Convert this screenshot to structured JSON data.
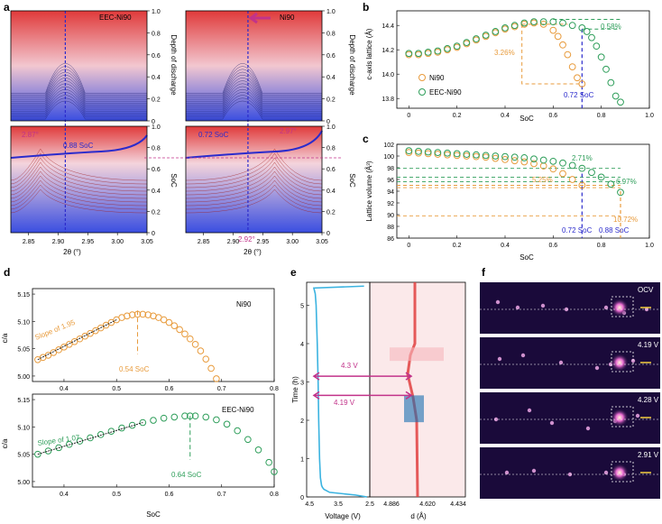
{
  "figure": {
    "panel_labels": [
      "a",
      "b",
      "c",
      "d",
      "e",
      "f"
    ]
  },
  "colors": {
    "ni90": "#e89b3c",
    "eec": "#2e9e5a",
    "blue": "#2b2bcc",
    "magenta": "#c2338a",
    "trace": "#3bb3e0",
    "red": "#e04040",
    "dark": "#1a0a3a"
  },
  "chart_data": [
    {
      "id": "a",
      "type": "line",
      "title": "XRD contour (002)-type peak evolution during charge/discharge",
      "subplots": [
        {
          "name": "EEC-Ni90",
          "xlim": [
            2.82,
            3.05
          ],
          "peak_charge": 2.87,
          "dashed_x": 2.912,
          "annotation_soc": "0.88 SoC",
          "shift_label": "2.87°"
        },
        {
          "name": "Ni90",
          "xlim": [
            2.82,
            3.05
          ],
          "peak_charge": 2.97,
          "dashed_x": 2.925,
          "annotation_soc": "0.72 SoC",
          "shift_label_top": "2.97°",
          "shift_label_bottom": "2.92°"
        }
      ],
      "xlabel": "2θ (°)",
      "xticks": [
        "2.85",
        "2.90",
        "2.95",
        "3.00",
        "3.05"
      ],
      "right_axis_top_label": "Depth of discharge",
      "right_axis_bottom_label": "SoC",
      "yticks_top": [
        "0",
        "0.2",
        "0.4",
        "0.6",
        "0.8",
        "1.0"
      ],
      "yticks_bottom": [
        "0",
        "0.2",
        "0.4",
        "0.6",
        "0.8",
        "1.0"
      ]
    },
    {
      "id": "b",
      "type": "scatter",
      "xlabel": "SoC",
      "ylabel": "c-axis lattice (Å)",
      "xlim": [
        -0.05,
        1.0
      ],
      "ylim": [
        13.72,
        14.52
      ],
      "xticks": [
        "0",
        "0.2",
        "0.4",
        "0.6",
        "0.8",
        "1.0"
      ],
      "yticks": [
        "13.8",
        "14.0",
        "14.2",
        "14.4"
      ],
      "series": [
        {
          "name": "Ni90",
          "color_key": "ni90",
          "x": [
            0.0,
            0.04,
            0.08,
            0.12,
            0.16,
            0.2,
            0.24,
            0.28,
            0.32,
            0.36,
            0.4,
            0.44,
            0.48,
            0.52,
            0.56,
            0.6,
            0.62,
            0.64,
            0.66,
            0.68,
            0.7,
            0.72
          ],
          "y": [
            14.16,
            14.16,
            14.17,
            14.18,
            14.2,
            14.22,
            14.25,
            14.28,
            14.31,
            14.34,
            14.37,
            14.39,
            14.41,
            14.42,
            14.41,
            14.36,
            14.31,
            14.24,
            14.16,
            14.06,
            13.97,
            13.92
          ]
        },
        {
          "name": "EEC-Ni90",
          "color_key": "eec",
          "x": [
            0.0,
            0.04,
            0.08,
            0.12,
            0.16,
            0.2,
            0.24,
            0.28,
            0.32,
            0.36,
            0.4,
            0.44,
            0.48,
            0.52,
            0.56,
            0.6,
            0.64,
            0.68,
            0.72,
            0.74,
            0.76,
            0.78,
            0.8,
            0.82,
            0.84,
            0.86,
            0.88
          ],
          "y": [
            14.17,
            14.17,
            14.18,
            14.19,
            14.21,
            14.23,
            14.26,
            14.29,
            14.32,
            14.35,
            14.38,
            14.4,
            14.42,
            14.43,
            14.43,
            14.43,
            14.42,
            14.4,
            14.38,
            14.35,
            14.3,
            14.23,
            14.14,
            14.04,
            13.93,
            13.82,
            13.77
          ]
        }
      ],
      "annotations": {
        "ni90_drop": "3.26%",
        "eec_drop": "0.58%",
        "soc_line": "0.72 SoC"
      }
    },
    {
      "id": "c",
      "type": "scatter",
      "xlabel": "SoC",
      "ylabel": "Lattice volume (Å³)",
      "xlim": [
        -0.05,
        1.0
      ],
      "ylim": [
        86,
        102
      ],
      "xticks": [
        "0",
        "0.2",
        "0.4",
        "0.6",
        "0.8",
        "1.0"
      ],
      "yticks": [
        "86",
        "88",
        "90",
        "92",
        "94",
        "96",
        "98",
        "100",
        "102"
      ],
      "series": [
        {
          "name": "Ni90",
          "color_key": "ni90",
          "x": [
            0.0,
            0.04,
            0.08,
            0.12,
            0.16,
            0.2,
            0.24,
            0.28,
            0.32,
            0.36,
            0.4,
            0.44,
            0.48,
            0.52,
            0.56,
            0.6,
            0.64,
            0.68,
            0.72
          ],
          "y": [
            100.6,
            100.5,
            100.4,
            100.3,
            100.2,
            100.1,
            100.0,
            99.9,
            99.8,
            99.6,
            99.4,
            99.2,
            99.0,
            98.7,
            98.3,
            97.8,
            97.0,
            96.0,
            95.0
          ]
        },
        {
          "name": "EEC-Ni90",
          "color_key": "eec",
          "x": [
            0.0,
            0.04,
            0.08,
            0.12,
            0.16,
            0.2,
            0.24,
            0.28,
            0.32,
            0.36,
            0.4,
            0.44,
            0.48,
            0.52,
            0.56,
            0.6,
            0.64,
            0.68,
            0.72,
            0.76,
            0.8,
            0.84,
            0.88
          ],
          "y": [
            100.9,
            100.8,
            100.7,
            100.6,
            100.5,
            100.4,
            100.3,
            100.2,
            100.1,
            100.0,
            99.9,
            99.8,
            99.7,
            99.5,
            99.3,
            99.1,
            98.8,
            98.4,
            97.9,
            97.2,
            96.4,
            95.2,
            93.8
          ]
        }
      ],
      "annotations": {
        "a1": "2.71%",
        "a2": "6.97%",
        "a3": "5.25%",
        "a4": "10.72%",
        "soc1": "0.72 SoC",
        "soc2": "0.88 SoC"
      }
    },
    {
      "id": "d",
      "type": "scatter",
      "xlabel": "SoC",
      "ylabel": "c/a",
      "xlim": [
        0.34,
        0.8
      ],
      "ylim": [
        4.99,
        5.16
      ],
      "xticks": [
        "0.4",
        "0.5",
        "0.6",
        "0.7",
        "0.8"
      ],
      "yticks": [
        "5.00",
        "5.05",
        "5.10",
        "5.15"
      ],
      "subplots": [
        {
          "name": "Ni90",
          "color_key": "ni90",
          "slope_label": "Slope of 1.95",
          "peak_label": "0.54 SoC",
          "peak_x": 0.54,
          "x": [
            0.35,
            0.36,
            0.37,
            0.38,
            0.39,
            0.4,
            0.41,
            0.42,
            0.43,
            0.44,
            0.45,
            0.46,
            0.47,
            0.48,
            0.49,
            0.5,
            0.51,
            0.52,
            0.53,
            0.54,
            0.55,
            0.56,
            0.57,
            0.58,
            0.59,
            0.6,
            0.61,
            0.62,
            0.63,
            0.64,
            0.65,
            0.66,
            0.67,
            0.68,
            0.69
          ],
          "y": [
            5.03,
            5.034,
            5.038,
            5.043,
            5.048,
            5.053,
            5.058,
            5.063,
            5.068,
            5.073,
            5.078,
            5.083,
            5.088,
            5.093,
            5.098,
            5.103,
            5.107,
            5.11,
            5.112,
            5.113,
            5.113,
            5.112,
            5.11,
            5.107,
            5.103,
            5.098,
            5.092,
            5.085,
            5.077,
            5.068,
            5.058,
            5.046,
            5.031,
            5.014,
            4.995
          ]
        },
        {
          "name": "EEC-Ni90",
          "color_key": "eec",
          "slope_label": "Slope of 1.07",
          "peak_label": "0.64 SoC",
          "peak_x": 0.64,
          "x": [
            0.35,
            0.37,
            0.39,
            0.41,
            0.43,
            0.45,
            0.47,
            0.49,
            0.51,
            0.53,
            0.55,
            0.57,
            0.59,
            0.61,
            0.63,
            0.64,
            0.65,
            0.67,
            0.69,
            0.71,
            0.73,
            0.75,
            0.77,
            0.79,
            0.8
          ],
          "y": [
            5.05,
            5.056,
            5.062,
            5.068,
            5.074,
            5.08,
            5.086,
            5.092,
            5.098,
            5.103,
            5.108,
            5.112,
            5.116,
            5.118,
            5.12,
            5.12,
            5.12,
            5.118,
            5.113,
            5.105,
            5.093,
            5.077,
            5.058,
            5.035,
            5.018
          ]
        }
      ]
    },
    {
      "id": "e",
      "type": "line",
      "xlabel_left": "Voltage (V)",
      "xlabel_right": "d (Å)",
      "ylabel": "Time (h)",
      "ylim": [
        0,
        5.6
      ],
      "yticks": [
        "0",
        "1",
        "2",
        "3",
        "4",
        "5"
      ],
      "vticks": [
        "4.5",
        "3.5",
        "2.5"
      ],
      "dticks": [
        "4.886",
        "4.620",
        "4.434"
      ],
      "voltage_trace": {
        "t": [
          0,
          0.05,
          0.12,
          0.2,
          0.25,
          0.3,
          0.5,
          1.0,
          2.0,
          3.0,
          4.0,
          5.0,
          5.3,
          5.45,
          5.5
        ],
        "v": [
          2.5,
          2.9,
          3.8,
          4.0,
          4.05,
          4.08,
          4.12,
          4.15,
          4.18,
          4.2,
          4.23,
          4.27,
          4.3,
          4.35,
          2.6
        ]
      },
      "arrows": [
        {
          "label": "4.3 V",
          "t": 3.15
        },
        {
          "label": "4.19 V",
          "t": 2.65
        }
      ]
    }
  ],
  "panel_f": {
    "frames": [
      {
        "label": "OCV"
      },
      {
        "label": "4.19 V"
      },
      {
        "label": "4.28 V"
      },
      {
        "label": "2.91 V"
      }
    ]
  }
}
